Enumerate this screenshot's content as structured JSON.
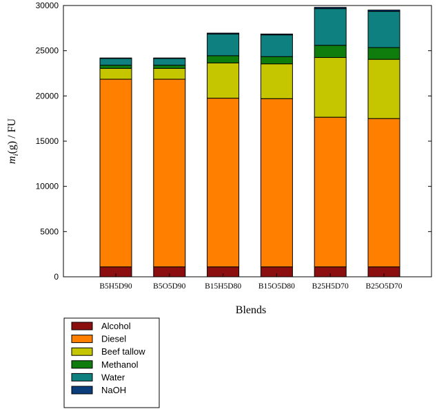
{
  "chart_data": {
    "type": "bar",
    "stacked": true,
    "categories": [
      "B5H5D90",
      "B5O5D90",
      "B15H5D80",
      "B15O5D80",
      "B25H5D70",
      "B25O5D70"
    ],
    "series": [
      {
        "name": "Alcohol",
        "color": "#8b0f0f",
        "values": [
          1100,
          1100,
          1100,
          1100,
          1100,
          1100
        ]
      },
      {
        "name": "Diesel",
        "color": "#ff8000",
        "values": [
          20750,
          20750,
          18650,
          18600,
          16550,
          16400
        ]
      },
      {
        "name": "Beef tallow",
        "color": "#c5c500",
        "values": [
          1200,
          1200,
          3900,
          3850,
          6600,
          6550
        ]
      },
      {
        "name": "Methanol",
        "color": "#0e7d0e",
        "values": [
          350,
          350,
          800,
          800,
          1350,
          1300
        ]
      },
      {
        "name": "Water",
        "color": "#0e8080",
        "values": [
          750,
          750,
          2400,
          2400,
          4050,
          4000
        ]
      },
      {
        "name": "NaOH",
        "color": "#0a3d7a",
        "values": [
          50,
          50,
          100,
          100,
          150,
          150
        ]
      }
    ],
    "title": "",
    "xlabel": "Blends",
    "ylabel_main": "m",
    "ylabel_sub": "i",
    "ylabel_rest": "(g) / FU",
    "ylim": [
      0,
      30000
    ],
    "yticks": [
      0,
      5000,
      10000,
      15000,
      20000,
      25000,
      30000
    ],
    "grid": false,
    "legend_placement": "below-left"
  }
}
